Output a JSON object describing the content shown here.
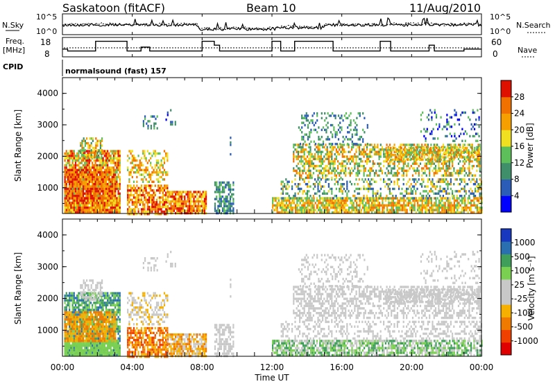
{
  "header": {
    "station": "Saskatoon (fitACF)",
    "beam": "Beam 10",
    "date": "11/Aug/2010"
  },
  "params": {
    "nsky_label": "N.Sky",
    "nsearch_label": "N.Search",
    "freq_label_line1": "Freq.",
    "freq_label_line2": "[MHz]",
    "nave_label": "Nave",
    "cpid_label": "CPID",
    "cpid_value": "normalsound (fast) 157",
    "nsky_ticks": [
      "10^5",
      "10^0"
    ],
    "nsearch_ticks": [
      "10^5",
      "10^0"
    ],
    "freq_ticks": [
      "18",
      "8"
    ],
    "nave_ticks": [
      "60",
      "0"
    ]
  },
  "colors": {
    "power_scale": [
      "#0000ff",
      "#2a5cb8",
      "#3f8f6a",
      "#5cbf5a",
      "#f0e020",
      "#f5a000",
      "#f07000",
      "#e01000"
    ],
    "velocity_scale": [
      "#e00000",
      "#f04000",
      "#f07a00",
      "#f5b000",
      "#c8c8c8",
      "#c8c8c8",
      "#7ad050",
      "#3f9f5a",
      "#2a70b0",
      "#1838c0"
    ]
  },
  "chart_data": [
    {
      "type": "heatmap",
      "panel": "power",
      "ylabel": "Slant Range [km]",
      "ylim": [
        180,
        4500
      ],
      "yticks": [
        "1000",
        "2000",
        "3000",
        "4000"
      ],
      "xlim_hours": [
        0,
        24
      ],
      "xticks": [
        "00:00",
        "04:00",
        "08:00",
        "12:00",
        "16:00",
        "20:00",
        "00:00"
      ],
      "colorbar": {
        "label": "Power [dB]",
        "range": [
          0,
          32
        ],
        "ticks": [
          "4",
          "8",
          "12",
          "16",
          "20",
          "24",
          "28"
        ]
      }
    },
    {
      "type": "heatmap",
      "panel": "velocity",
      "ylabel": "Slant Range [km]",
      "ylim": [
        180,
        4500
      ],
      "yticks": [
        "1000",
        "2000",
        "3000",
        "4000"
      ],
      "xlim_hours": [
        0,
        24
      ],
      "xticks": [
        "00:00",
        "04:00",
        "08:00",
        "12:00",
        "16:00",
        "20:00",
        "00:00"
      ],
      "xlabel": "Time UT",
      "colorbar": {
        "label": "Velocity [m s⁻¹]",
        "ticks": [
          "1000",
          "500",
          "100",
          "25",
          "-25",
          "-100",
          "-500",
          "-1000"
        ]
      }
    },
    {
      "type": "line",
      "panel": "frequency",
      "unit": "MHz",
      "ylim": [
        8,
        18
      ],
      "x_hours": [
        0,
        0.3,
        0.3,
        1.9,
        1.9,
        3.7,
        3.7,
        4.5,
        4.5,
        5.0,
        5.0,
        6.0,
        6.0,
        8.0,
        8.0,
        8.7,
        8.7,
        9.0,
        9.0,
        9.7,
        9.7,
        12.0,
        12.0,
        12.5,
        12.5,
        13.3,
        13.3,
        15.5,
        15.5,
        18.2,
        18.2,
        18.8,
        18.8,
        21.0,
        21.0,
        21.3,
        21.3,
        23.0,
        23.0,
        24.0
      ],
      "values": [
        12,
        12,
        11,
        11,
        16,
        16,
        11,
        11,
        13,
        13,
        11,
        11,
        11,
        11,
        16,
        16,
        14,
        14,
        11,
        11,
        11,
        11,
        16,
        16,
        11,
        11,
        16,
        16,
        11,
        11,
        16,
        16,
        11,
        11,
        14,
        14,
        11,
        11,
        12,
        12
      ]
    }
  ]
}
